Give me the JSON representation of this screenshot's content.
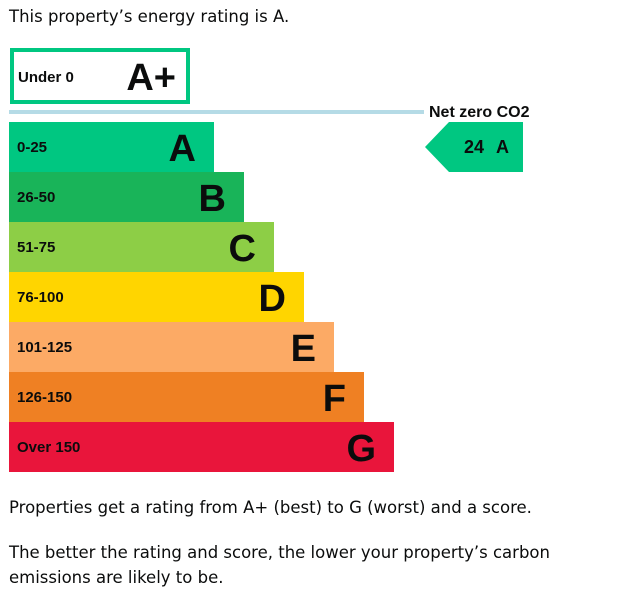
{
  "intro": "This property’s energy rating is A.",
  "paragraphs": {
    "p1": "Properties get a rating from A+ (best) to G (worst) and a score.",
    "p2": "The better the rating and score, the lower your property’s carbon emissions are likely to be."
  },
  "chart_data": {
    "type": "bar",
    "title": "",
    "top_band": {
      "range": "Under 0",
      "letter": "A+",
      "color": "#00c781"
    },
    "net_zero_label": "Net zero CO2",
    "line_color": "#b5dbe6",
    "bands": [
      {
        "range": "0-25",
        "letter": "A",
        "color": "#00c781"
      },
      {
        "range": "26-50",
        "letter": "B",
        "color": "#19b459"
      },
      {
        "range": "51-75",
        "letter": "C",
        "color": "#8dce46"
      },
      {
        "range": "76-100",
        "letter": "D",
        "color": "#ffd500"
      },
      {
        "range": "101-125",
        "letter": "E",
        "color": "#fcaa65"
      },
      {
        "range": "126-150",
        "letter": "F",
        "color": "#ef8023"
      },
      {
        "range": "Over 150",
        "letter": "G",
        "color": "#e9153b"
      }
    ],
    "current": {
      "score": "24",
      "letter": "A",
      "band_index": 0,
      "color": "#00c781"
    }
  }
}
